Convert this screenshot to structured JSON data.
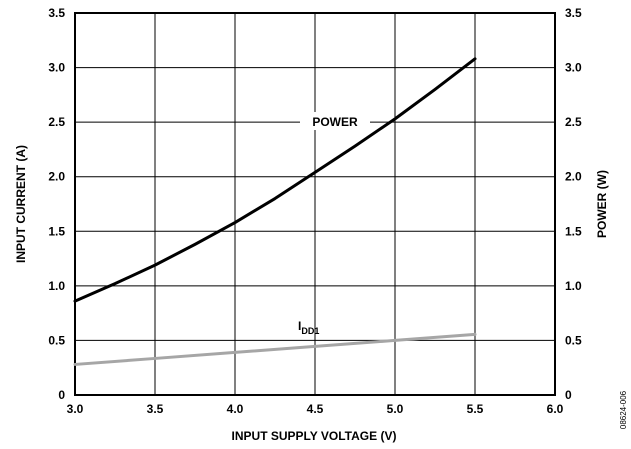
{
  "chart_data": {
    "type": "line",
    "xlabel": "INPUT SUPPLY VOLTAGE (V)",
    "ylabel": "INPUT CURRENT (A)",
    "y2label": "POWER (W)",
    "xlim": [
      3.0,
      6.0
    ],
    "ylim": [
      0,
      3.5
    ],
    "y2lim": [
      0,
      3.5
    ],
    "x_ticks": [
      "3.0",
      "3.5",
      "4.0",
      "4.5",
      "5.0",
      "5.5",
      "6.0"
    ],
    "y_ticks": [
      "0",
      "0.5",
      "1.0",
      "1.5",
      "2.0",
      "2.5",
      "3.0",
      "3.5"
    ],
    "y2_ticks": [
      "0",
      "0.5",
      "1.0",
      "1.5",
      "2.0",
      "2.5",
      "3.0",
      "3.5"
    ],
    "grid": true,
    "series": [
      {
        "name": "POWER",
        "axis": "right",
        "color": "#000000",
        "x": [
          3.0,
          3.25,
          3.5,
          3.75,
          4.0,
          4.25,
          4.5,
          4.75,
          5.0,
          5.25,
          5.5
        ],
        "y": [
          0.86,
          1.02,
          1.19,
          1.38,
          1.58,
          1.8,
          2.04,
          2.28,
          2.53,
          2.8,
          3.08
        ]
      },
      {
        "name": "I",
        "name_subscript": "DD1",
        "axis": "left",
        "color": "#a6a6a6",
        "x": [
          3.0,
          3.5,
          4.0,
          4.5,
          5.0,
          5.5
        ],
        "y": [
          0.28,
          0.335,
          0.39,
          0.445,
          0.5,
          0.555
        ]
      }
    ],
    "annotations": [
      {
        "text": "POWER",
        "x": 4.5,
        "y": 2.5
      },
      {
        "text": "I",
        "subscript": "DD1",
        "x": 4.75,
        "y": 0.65
      }
    ],
    "figure_id": "08624-006"
  }
}
